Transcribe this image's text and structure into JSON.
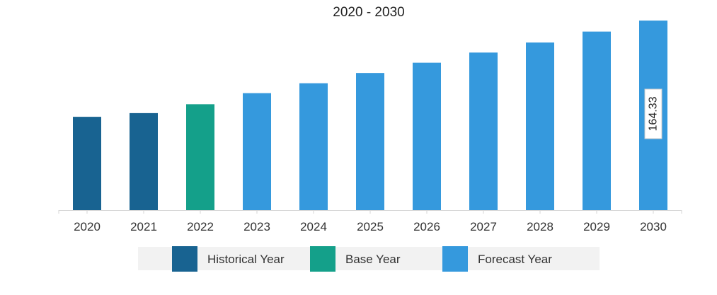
{
  "chart_data": {
    "type": "bar",
    "title": "2020 - 2030",
    "xlabel": "",
    "ylabel": "",
    "categories": [
      "2020",
      "2021",
      "2022",
      "2023",
      "2024",
      "2025",
      "2026",
      "2027",
      "2028",
      "2029",
      "2030"
    ],
    "values": [
      80.9,
      84.1,
      91.8,
      101.4,
      110.0,
      118.9,
      127.8,
      136.6,
      145.3,
      154.8,
      164.33
    ],
    "period": [
      "historical",
      "historical",
      "base",
      "forecast",
      "forecast",
      "forecast",
      "forecast",
      "forecast",
      "forecast",
      "forecast",
      "forecast"
    ],
    "ylim": [
      0,
      165
    ],
    "grid": false,
    "legend_position": "bottom",
    "legend": [
      {
        "key": "historical",
        "label": "Historical Year",
        "color": "#186391"
      },
      {
        "key": "base",
        "label": "Base Year",
        "color": "#14a08a"
      },
      {
        "key": "forecast",
        "label": "Forecast Year",
        "color": "#3599dd"
      }
    ],
    "data_labels": [
      {
        "index": 10,
        "text": "164.33"
      }
    ]
  }
}
